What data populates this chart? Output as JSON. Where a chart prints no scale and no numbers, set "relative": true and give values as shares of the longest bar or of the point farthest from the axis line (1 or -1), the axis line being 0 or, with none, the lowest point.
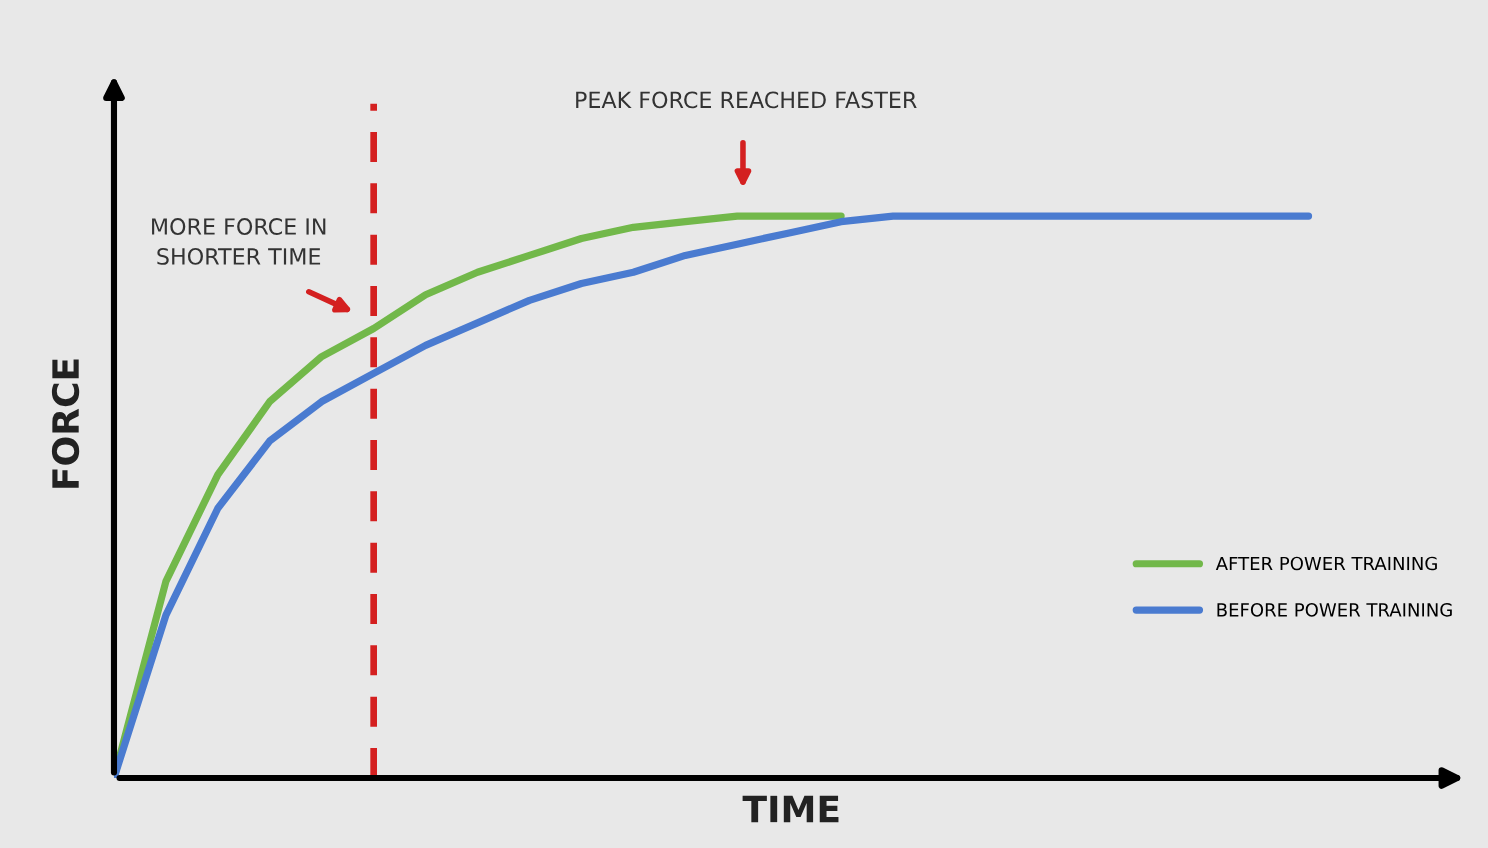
{
  "chart_data": {
    "type": "line",
    "relative": true,
    "xlabel": "TIME",
    "ylabel": "FORCE",
    "categories": [
      null,
      null,
      null,
      null,
      null,
      null,
      null,
      null,
      null,
      null,
      null,
      null,
      null,
      null,
      null,
      null,
      null,
      null,
      null,
      null,
      null,
      null,
      null,
      null
    ],
    "series": [
      {
        "name": "AFTER POWER TRAINING",
        "color": "#72b84a",
        "values": [
          0,
          0.35,
          0.54,
          0.67,
          0.75,
          0.8,
          0.86,
          0.9,
          0.93,
          0.96,
          0.98,
          0.99,
          1,
          1,
          1,
          null,
          null,
          null,
          null,
          null,
          null,
          null,
          null,
          null
        ]
      },
      {
        "name": "BEFORE POWER TRAINING",
        "color": "#4a7bd0",
        "values": [
          0,
          0.29,
          0.48,
          0.6,
          0.67,
          0.72,
          0.77,
          0.81,
          0.85,
          0.88,
          0.9,
          0.93,
          0.95,
          0.97,
          0.99,
          1,
          1,
          1,
          1,
          1,
          1,
          1,
          1,
          1
        ]
      }
    ],
    "annotations": [
      "MORE FORCE IN\nSHORTER TIME",
      "PEAK FORCE REACHED FASTER"
    ],
    "legend": "bottom right",
    "marker": "none",
    "line_style": "solid"
  }
}
